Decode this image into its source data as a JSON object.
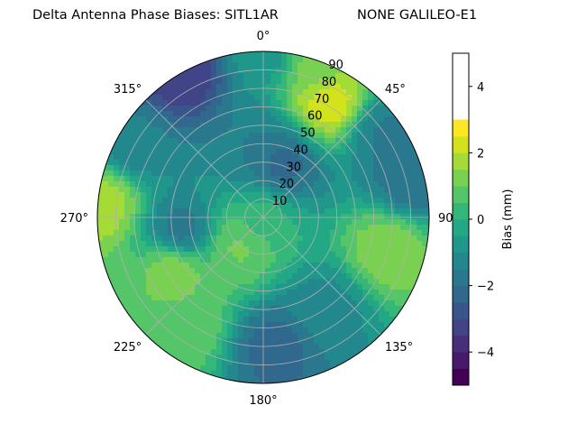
{
  "title_left": "Delta Antenna Phase Biases: SITL1AR",
  "title_right": "NONE GALILEO-E1",
  "chart_data": {
    "type": "heatmap",
    "projection": "polar",
    "theta_zero": "N",
    "theta_direction": "clockwise",
    "radial_axis": {
      "ticks": [
        10,
        20,
        30,
        40,
        50,
        60,
        70,
        80,
        90
      ],
      "range": [
        0,
        90
      ]
    },
    "angular_ticks": [
      {
        "deg": 0,
        "label": "0°"
      },
      {
        "deg": 45,
        "label": "45°"
      },
      {
        "deg": 90,
        "label": "90°"
      },
      {
        "deg": 135,
        "label": "135°"
      },
      {
        "deg": 180,
        "label": "180°"
      },
      {
        "deg": 225,
        "label": "225°"
      },
      {
        "deg": 270,
        "label": "270°"
      },
      {
        "deg": 315,
        "label": "315°"
      }
    ],
    "grid": true,
    "colorbar": {
      "label": "Bias (mm)",
      "range": [
        -5,
        5
      ],
      "ticks": [
        -4,
        -2,
        0,
        2,
        4
      ],
      "tick_labels": [
        "−4",
        "−2",
        "0",
        "2",
        "4"
      ],
      "levels": [
        -5,
        -4.5,
        -4,
        -3.5,
        -3,
        -2.5,
        -2,
        -1.5,
        -1,
        -0.5,
        0,
        0.5,
        1,
        1.5,
        2,
        2.5,
        3,
        3.5,
        4,
        4.5,
        5
      ],
      "colors": [
        "#440154",
        "#481a6c",
        "#472f7d",
        "#414487",
        "#39568c",
        "#31688e",
        "#2a788e",
        "#23888e",
        "#1f988b",
        "#22a884",
        "#35b779",
        "#54c568",
        "#7ad151",
        "#a5db36",
        "#d2e21b",
        "#fde725"
      ]
    },
    "contour_regions": [
      {
        "theta": 0,
        "r": 90,
        "value": -0.8
      },
      {
        "theta": 20,
        "r": 88,
        "value": 1.2
      },
      {
        "theta": 30,
        "r": 72,
        "value": 2.4
      },
      {
        "theta": 55,
        "r": 80,
        "value": -1.6
      },
      {
        "theta": 75,
        "r": 85,
        "value": -2.0
      },
      {
        "theta": 105,
        "r": 70,
        "value": 1.4
      },
      {
        "theta": 145,
        "r": 60,
        "value": -1.2
      },
      {
        "theta": 175,
        "r": 70,
        "value": -2.2
      },
      {
        "theta": 215,
        "r": 70,
        "value": 0.9
      },
      {
        "theta": 240,
        "r": 55,
        "value": 1.4
      },
      {
        "theta": 260,
        "r": 45,
        "value": -1.8
      },
      {
        "theta": 275,
        "r": 88,
        "value": 1.8
      },
      {
        "theta": 300,
        "r": 80,
        "value": -1.4
      },
      {
        "theta": 330,
        "r": 88,
        "value": -3.4
      },
      {
        "theta": 350,
        "r": 40,
        "value": -1.5
      },
      {
        "theta": 20,
        "r": 30,
        "value": -2.2
      },
      {
        "theta": 220,
        "r": 20,
        "value": 1.1
      },
      {
        "theta": 0,
        "r": 0,
        "value": 0.2
      }
    ]
  }
}
